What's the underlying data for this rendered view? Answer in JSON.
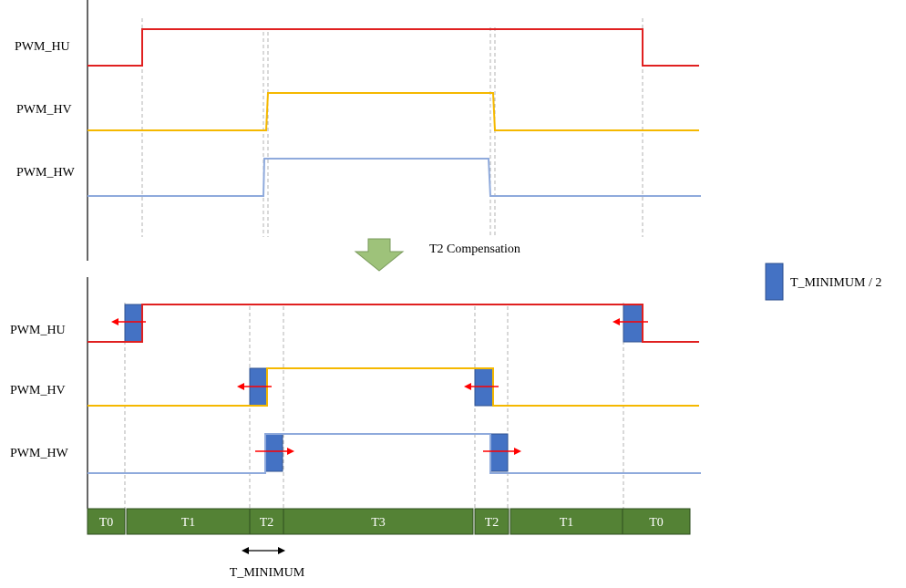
{
  "top_panel": {
    "signals": [
      {
        "label": "PWM_HU",
        "color": "#e02020"
      },
      {
        "label": "PWM_HV",
        "color": "#f5b800"
      },
      {
        "label": "PWM_HW",
        "color": "#8faadc"
      }
    ]
  },
  "transition": {
    "arrow_color": "#9ec27a",
    "label": "T2 Compensation"
  },
  "bottom_panel": {
    "signals": [
      {
        "label": "PWM_HU",
        "color": "#e02020"
      },
      {
        "label": "PWM_HV",
        "color": "#f5b800"
      },
      {
        "label": "PWM_HW",
        "color": "#8faadc"
      }
    ],
    "compensation_block_color": "#4472c4",
    "shift_arrow_color": "#ff0000"
  },
  "legend": {
    "swatch_color": "#4472c4",
    "label": "T_MINIMUM / 2"
  },
  "timeline": {
    "bar_color": "#548235",
    "segments": [
      "T0",
      "T1",
      "T2",
      "T3",
      "T2",
      "T1",
      "T0"
    ]
  },
  "t_minimum": {
    "label": "T_MINIMUM"
  }
}
